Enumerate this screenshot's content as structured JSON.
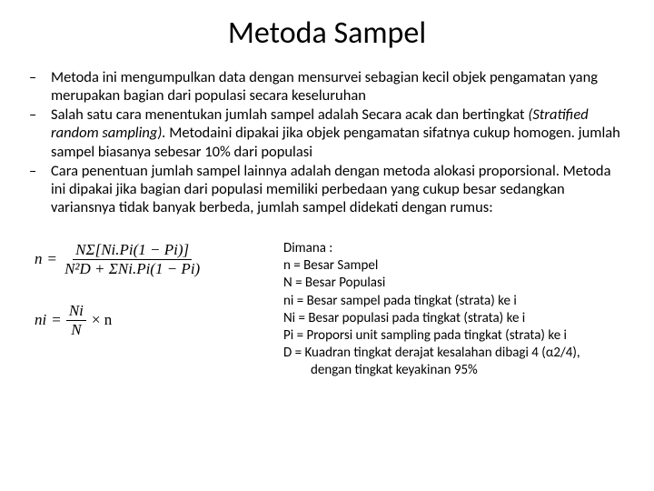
{
  "title": "Metoda Sampel",
  "bullets": [
    {
      "text": "Metoda ini mengumpulkan data dengan mensurvei sebagian kecil objek pengamatan yang merupakan bagian dari populasi secara keseluruhan"
    },
    {
      "text": "Salah satu cara  menentukan jumlah sampel adalah Secara acak dan bertingkat ",
      "italic": "(Stratified random sampling). ",
      "after": "Metodaini dipakai jika objek pengamatan sifatnya cukup homogen. jumlah sampel biasanya sebesar 10% dari populasi"
    },
    {
      "text": "Cara penentuan jumlah sampel lainnya adalah dengan metoda alokasi proporsional. Metoda ini dipakai jika bagian dari populasi memiliki perbedaan yang cukup besar sedangkan variansnya tidak banyak berbeda, jumlah sampel didekati dengan rumus:"
    }
  ],
  "formula1": {
    "lhs": "n",
    "eq": "=",
    "num": "NΣ[Ni.Pi(1 − Pi)]",
    "den": "N²D + ΣNi.Pi(1 − Pi)"
  },
  "formula2": {
    "lhs": "ni",
    "eq": "=",
    "num": "Ni",
    "den": "N",
    "times": "× n"
  },
  "legend": {
    "heading": "Dimana :",
    "lines": [
      "n = Besar Sampel",
      "N = Besar Populasi",
      "ni = Besar sampel pada tingkat (strata) ke i",
      "Ni = Besar populasi pada tingkat (strata) ke i",
      "Pi = Proporsi unit sampling pada tingkat (strata) ke i",
      "D  = Kuadran tingkat derajat kesalahan dibagi 4 (α2/4),"
    ],
    "indent": "dengan tingkat keyakinan 95%"
  },
  "colors": {
    "background": "#ffffff",
    "text": "#000000"
  }
}
